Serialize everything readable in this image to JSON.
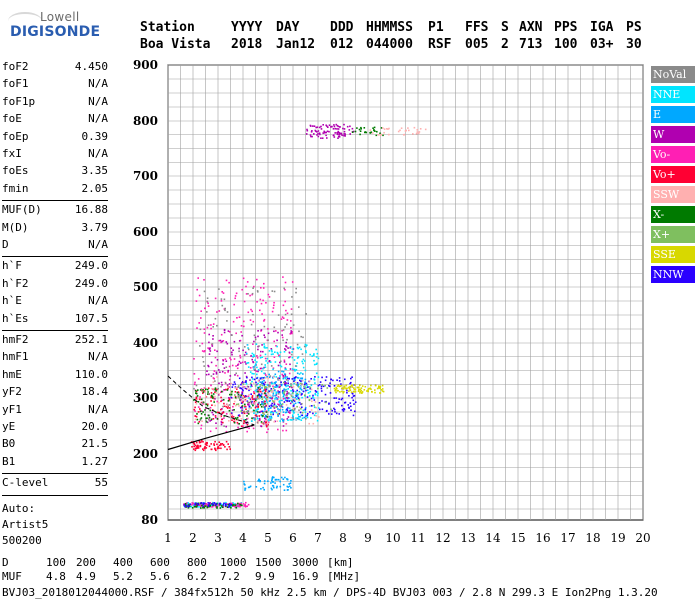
{
  "logo": {
    "line1": "Lowell",
    "line2": "DIGISONDE"
  },
  "header": {
    "cols": [
      {
        "label": "Station",
        "value": "Boa Vista"
      },
      {
        "label": "YYYY",
        "value": "2018"
      },
      {
        "label": "DAY",
        "value": "Jan12"
      },
      {
        "label": "DDD",
        "value": "012"
      },
      {
        "label": "HHMMSS",
        "value": "044000"
      },
      {
        "label": "P1",
        "value": "RSF"
      },
      {
        "label": "FFS",
        "value": "005"
      },
      {
        "label": "S",
        "value": "2"
      },
      {
        "label": "AXN",
        "value": "713"
      },
      {
        "label": "PPS",
        "value": "100"
      },
      {
        "label": "IGA",
        "value": "03+"
      },
      {
        "label": "PS",
        "value": "30"
      }
    ]
  },
  "params": {
    "group1": [
      {
        "label": "foF2",
        "value": "4.450"
      },
      {
        "label": "foF1",
        "value": "N/A"
      },
      {
        "label": "foF1p",
        "value": "N/A"
      },
      {
        "label": "foE",
        "value": "N/A"
      },
      {
        "label": "foEp",
        "value": "0.39"
      },
      {
        "label": "fxI",
        "value": "N/A"
      },
      {
        "label": "foEs",
        "value": "3.35"
      },
      {
        "label": "fmin",
        "value": "2.05"
      }
    ],
    "group2": [
      {
        "label": "MUF(D)",
        "value": "16.88"
      },
      {
        "label": "M(D)",
        "value": "3.79"
      },
      {
        "label": "D",
        "value": "N/A"
      }
    ],
    "group3": [
      {
        "label": "h`F",
        "value": "249.0"
      },
      {
        "label": "h`F2",
        "value": "249.0"
      },
      {
        "label": "h`E",
        "value": "N/A"
      },
      {
        "label": "h`Es",
        "value": "107.5"
      }
    ],
    "group4": [
      {
        "label": "hmF2",
        "value": "252.1"
      },
      {
        "label": "hmF1",
        "value": "N/A"
      },
      {
        "label": "hmE",
        "value": "110.0"
      },
      {
        "label": "yF2",
        "value": "18.4"
      },
      {
        "label": "yF1",
        "value": "N/A"
      },
      {
        "label": "yE",
        "value": "20.0"
      },
      {
        "label": "B0",
        "value": "21.5"
      },
      {
        "label": "B1",
        "value": "1.27"
      }
    ],
    "group5": [
      {
        "label": "C-level",
        "value": "55"
      }
    ],
    "auto": [
      "Auto:",
      "Artist5",
      "500200"
    ]
  },
  "legend": [
    {
      "label": "NoVal",
      "color": "#8a8a8a"
    },
    {
      "label": "NNE",
      "color": "#00e5ff"
    },
    {
      "label": "E",
      "color": "#00a8ff"
    },
    {
      "label": "W",
      "color": "#b000b0"
    },
    {
      "label": "Vo-",
      "color": "#ff1fb4"
    },
    {
      "label": "Vo+",
      "color": "#ff0033"
    },
    {
      "label": "SSW",
      "color": "#ffb0b0"
    },
    {
      "label": "X-",
      "color": "#007a00"
    },
    {
      "label": "X+",
      "color": "#7fbf5f"
    },
    {
      "label": "SSE",
      "color": "#d8d800"
    },
    {
      "label": "NNW",
      "color": "#2a00ff"
    }
  ],
  "chart_data": {
    "type": "scatter",
    "title": "",
    "xlabel": "",
    "ylabel": "",
    "xlim": [
      1,
      20
    ],
    "ylim": [
      80,
      900
    ],
    "x_ticks": [
      "1",
      "2",
      "3",
      "4",
      "5",
      "6",
      "7",
      "8",
      "9",
      "10",
      "11",
      "12",
      "13",
      "14",
      "15",
      "16",
      "17",
      "18",
      "19",
      "20"
    ],
    "y_ticks": [
      "80",
      "200",
      "300",
      "400",
      "500",
      "600",
      "700",
      "800",
      "900"
    ],
    "grid": true,
    "legend_position": "right",
    "clusters": [
      {
        "series": "W",
        "x": [
          6.5,
          8.4
        ],
        "y": [
          770,
          795
        ],
        "n": 90
      },
      {
        "series": "X-",
        "x": [
          8.3,
          9.6
        ],
        "y": [
          775,
          790
        ],
        "n": 25
      },
      {
        "series": "SSW",
        "x": [
          9.0,
          11.5
        ],
        "y": [
          775,
          790
        ],
        "n": 30
      },
      {
        "series": "Vo-",
        "x": [
          2.0,
          6.0
        ],
        "y": [
          240,
          520
        ],
        "n": 260
      },
      {
        "series": "W",
        "x": [
          2.5,
          6.0
        ],
        "y": [
          250,
          430
        ],
        "n": 220
      },
      {
        "series": "NNE",
        "x": [
          4.0,
          7.0
        ],
        "y": [
          260,
          400
        ],
        "n": 260
      },
      {
        "series": "E",
        "x": [
          4.5,
          6.5
        ],
        "y": [
          260,
          350
        ],
        "n": 160
      },
      {
        "series": "NNW",
        "x": [
          3.5,
          8.5
        ],
        "y": [
          270,
          340
        ],
        "n": 220
      },
      {
        "series": "Vo+",
        "x": [
          2.0,
          5.0
        ],
        "y": [
          250,
          320
        ],
        "n": 120
      },
      {
        "series": "SSW",
        "x": [
          2.0,
          7.0
        ],
        "y": [
          255,
          340
        ],
        "n": 120
      },
      {
        "series": "X-",
        "x": [
          2.0,
          5.0
        ],
        "y": [
          255,
          320
        ],
        "n": 90
      },
      {
        "series": "X+",
        "x": [
          3.5,
          7.5
        ],
        "y": [
          270,
          330
        ],
        "n": 70
      },
      {
        "series": "NoVal",
        "x": [
          2.0,
          6.5
        ],
        "y": [
          250,
          500
        ],
        "n": 120
      },
      {
        "series": "SSE",
        "x": [
          7.6,
          9.6
        ],
        "y": [
          310,
          325
        ],
        "n": 90
      },
      {
        "series": "Vo+",
        "x": [
          1.9,
          3.5
        ],
        "y": [
          208,
          225
        ],
        "n": 70
      },
      {
        "series": "E",
        "x": [
          4.0,
          5.9
        ],
        "y": [
          135,
          160
        ],
        "n": 60
      },
      {
        "series": "NNE",
        "x": [
          1.6,
          3.9
        ],
        "y": [
          105,
          113
        ],
        "n": 90
      },
      {
        "series": "Vo-",
        "x": [
          1.6,
          4.2
        ],
        "y": [
          105,
          113
        ],
        "n": 90
      },
      {
        "series": "X-",
        "x": [
          1.6,
          4.0
        ],
        "y": [
          103,
          112
        ],
        "n": 60
      },
      {
        "series": "NNW",
        "x": [
          1.6,
          3.5
        ],
        "y": [
          105,
          113
        ],
        "n": 40
      }
    ],
    "trace_solid": [
      [
        1.0,
        208
      ],
      [
        2.5,
        228
      ],
      [
        4.45,
        252
      ]
    ],
    "trace_dashed": [
      [
        1.0,
        340
      ],
      [
        1.6,
        315
      ],
      [
        2.4,
        285
      ],
      [
        3.3,
        268
      ],
      [
        4.45,
        252
      ]
    ]
  },
  "footer": {
    "d_row": {
      "label": "D",
      "values": [
        "100",
        "200",
        "400",
        "600",
        "800",
        "1000",
        "1500",
        "3000",
        "[km]"
      ]
    },
    "muf_row": {
      "label": "MUF",
      "values": [
        "4.8",
        "4.9",
        "5.2",
        "5.6",
        "6.2",
        "7.2",
        "9.9",
        "16.9",
        "[MHz]"
      ]
    },
    "info": "BVJ03_2018012044000.RSF / 384fx512h 50 kHz 2.5 km / DPS-4D BVJ03 003 / 2.8 N 299.3 E Ion2Png 1.3.20"
  }
}
